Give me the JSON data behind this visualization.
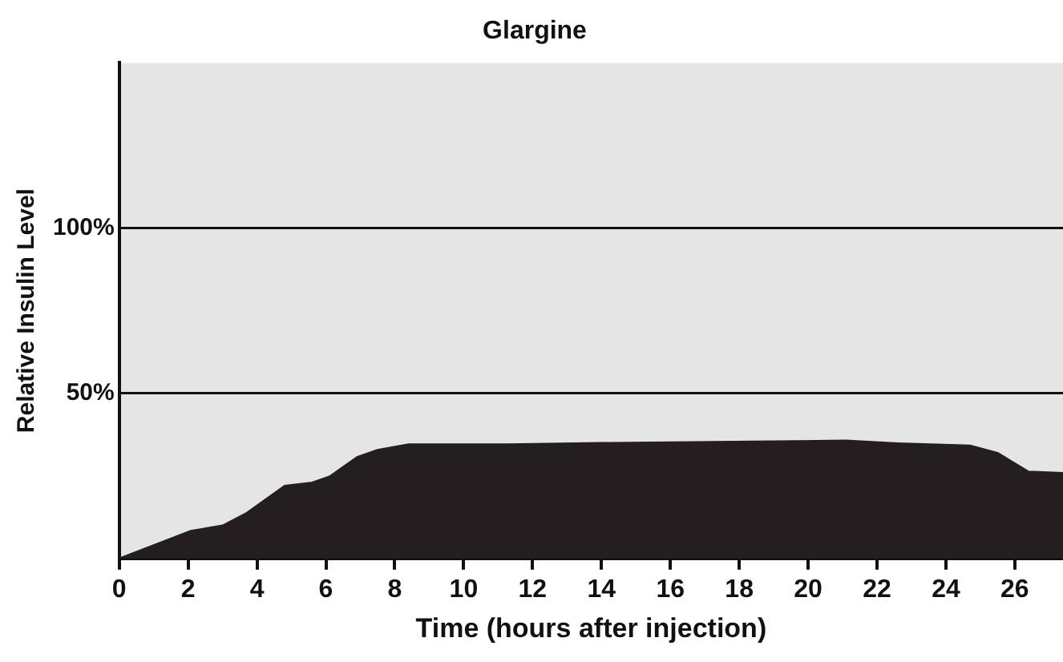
{
  "chart_data": {
    "type": "area",
    "title": "Glargine",
    "xlabel": "Time (hours after injection)",
    "ylabel": "Relative Insulin Level",
    "x": [
      0,
      2.05,
      3,
      3.7,
      4.8,
      5.6,
      6.1,
      6.9,
      7.5,
      8.4,
      11.3,
      14,
      21.1,
      22.6,
      24.7,
      25.5,
      26.4,
      27.4
    ],
    "series": [
      {
        "color": "#231f20",
        "values": [
          0,
          8.3,
          10,
          13.8,
          22,
          23,
          24.8,
          30.7,
          32.9,
          34.6,
          34.6,
          35,
          35.7,
          34.9,
          34.2,
          32,
          26.3,
          25.9
        ]
      }
    ],
    "xlim": [
      0,
      27.4
    ],
    "xticks": [
      0,
      2,
      4,
      6,
      8,
      10,
      12,
      14,
      16,
      18,
      20,
      22,
      24,
      26
    ],
    "ylim": [
      0,
      150
    ],
    "yticks": [
      {
        "value": 50,
        "label": "50%"
      },
      {
        "value": 100,
        "label": "100%"
      }
    ],
    "grid": "y",
    "legend": false,
    "marker": "none",
    "line_style": "solid"
  }
}
